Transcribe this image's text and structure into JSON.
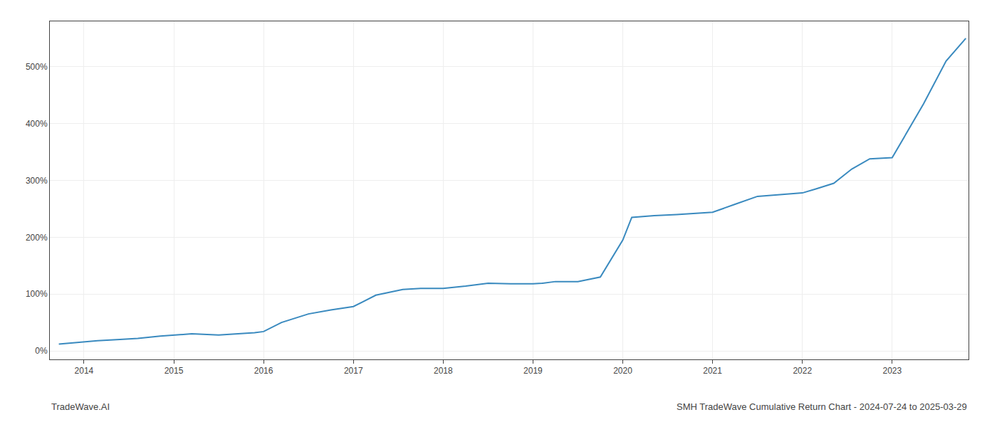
{
  "chart_data": {
    "type": "line",
    "annotations": [
      "TradeWave.AI",
      "SMH TradeWave Cumulative Return Chart - 2024-07-24 to 2025-03-29"
    ],
    "x": [
      2013.72,
      2013.85,
      2014.0,
      2014.15,
      2014.4,
      2014.6,
      2014.85,
      2015.0,
      2015.2,
      2015.5,
      2015.75,
      2015.9,
      2016.0,
      2016.2,
      2016.5,
      2016.75,
      2017.0,
      2017.25,
      2017.55,
      2017.75,
      2018.0,
      2018.25,
      2018.5,
      2018.75,
      2019.0,
      2019.1,
      2019.25,
      2019.5,
      2019.75,
      2020.0,
      2020.1,
      2020.35,
      2020.6,
      2020.85,
      2021.0,
      2021.25,
      2021.5,
      2021.75,
      2022.0,
      2022.15,
      2022.35,
      2022.55,
      2022.75,
      2023.0,
      2023.15,
      2023.35,
      2023.6,
      2023.82
    ],
    "values": [
      12,
      14,
      16,
      18,
      20,
      22,
      26,
      28,
      30,
      28,
      30,
      32,
      34,
      50,
      65,
      72,
      78,
      98,
      108,
      110,
      110,
      114,
      119,
      118,
      118,
      119,
      122,
      122,
      130,
      195,
      235,
      238,
      240,
      242,
      244,
      258,
      272,
      275,
      278,
      285,
      295,
      320,
      338,
      340,
      380,
      435,
      510,
      550
    ],
    "color": "#3a8abf",
    "xlim": [
      2013.62,
      2023.85
    ],
    "xticks": [
      2014,
      2015,
      2016,
      2017,
      2018,
      2019,
      2020,
      2021,
      2022,
      2023
    ],
    "ylim": [
      -15,
      580
    ],
    "yticks": [
      {
        "value": 0,
        "label": "0%"
      },
      {
        "value": 100,
        "label": "100%"
      },
      {
        "value": 200,
        "label": "200%"
      },
      {
        "value": 300,
        "label": "300%"
      },
      {
        "value": 400,
        "label": "400%"
      },
      {
        "value": 500,
        "label": "500%"
      }
    ],
    "grid": true
  }
}
